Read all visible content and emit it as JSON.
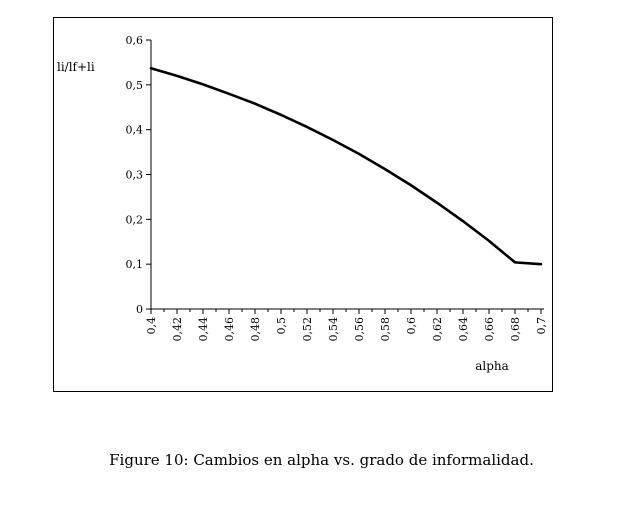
{
  "chart_data": {
    "type": "line",
    "ylabel": "li/lf+li",
    "xlabel": "alpha",
    "x": [
      0.4,
      0.42,
      0.44,
      0.46,
      0.48,
      0.5,
      0.52,
      0.54,
      0.56,
      0.58,
      0.6,
      0.62,
      0.64,
      0.66,
      0.68,
      0.7
    ],
    "series": [
      {
        "values": [
          0.537,
          0.514,
          0.49,
          0.466,
          0.441,
          0.415,
          0.387,
          0.358,
          0.328,
          0.295,
          0.261,
          0.224,
          0.185,
          0.143,
          0.098,
          0.05
        ]
      }
    ],
    "y": [
      0.537,
      0.52,
      0.501,
      0.48,
      0.458,
      0.433,
      0.406,
      0.377,
      0.346,
      0.312,
      0.276,
      0.237,
      0.196,
      0.152,
      0.104,
      0.1
    ],
    "xlim": [
      0.4,
      0.7
    ],
    "ylim": [
      0,
      0.6
    ],
    "xticks": [
      "0,4",
      "0,42",
      "0,44",
      "0,46",
      "0,48",
      "0,5",
      "0,52",
      "0,54",
      "0,56",
      "0,58",
      "0,6",
      "0,62",
      "0,64",
      "0,66",
      "0,68",
      "0,7"
    ],
    "yticks": [
      "0",
      "0,1",
      "0,2",
      "0,3",
      "0,4",
      "0,5",
      "0,6"
    ],
    "grid": false,
    "line_color": "#000000"
  },
  "caption": "Figure 10:  Cambios en alpha vs.  grado de informalidad."
}
